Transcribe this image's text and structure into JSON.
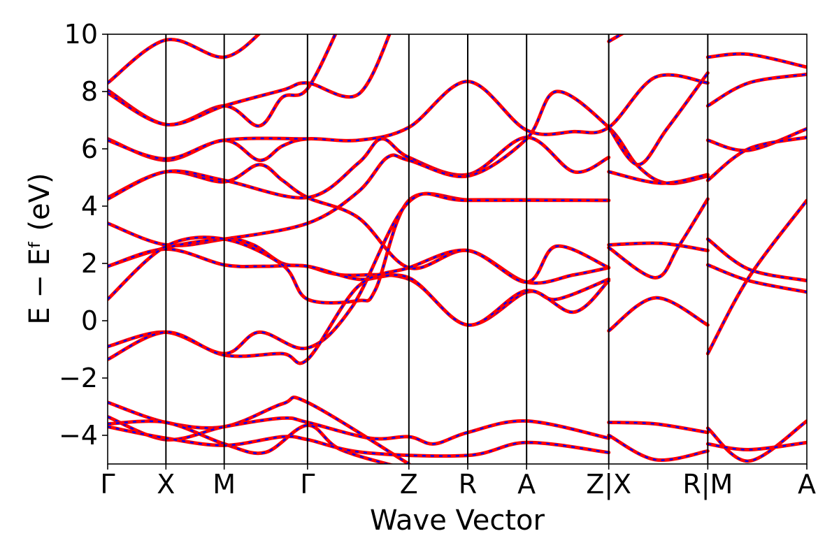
{
  "chart_data": {
    "type": "line",
    "title": "",
    "xlabel": "Wave Vector",
    "ylabel": "E − Eᶠ (eV)",
    "ylim": [
      -5,
      10
    ],
    "yticks": [
      -4,
      -2,
      0,
      2,
      4,
      6,
      8,
      10
    ],
    "ytick_labels": [
      "−4",
      "−2",
      "0",
      "2",
      "4",
      "6",
      "8",
      "10"
    ],
    "xlim": [
      0,
      12
    ],
    "kpoint_ticks": [
      {
        "x": 0,
        "label": "Γ"
      },
      {
        "x": 1,
        "label": "X"
      },
      {
        "x": 2,
        "label": "M"
      },
      {
        "x": 3.43,
        "label": "Γ"
      },
      {
        "x": 5.17,
        "label": "Z"
      },
      {
        "x": 6.18,
        "label": "R"
      },
      {
        "x": 7.19,
        "label": "A"
      },
      {
        "x": 8.6,
        "label": "Z|X"
      },
      {
        "x": 10.3,
        "label": "R|M"
      },
      {
        "x": 12,
        "label": "A"
      }
    ],
    "segment_breaks": [
      8.6,
      10.3
    ],
    "series_style": [
      {
        "color": "#ff0000",
        "style": "solid"
      },
      {
        "color": "#0000ff",
        "style": "dashed"
      }
    ],
    "bands": [
      [
        [
          0,
          8.3
        ],
        [
          1,
          9.8
        ],
        [
          2,
          9.2
        ],
        [
          2.7,
          10.2
        ]
      ],
      [
        [
          0,
          8.05
        ],
        [
          1,
          6.85
        ],
        [
          2,
          7.5
        ],
        [
          2.6,
          6.8
        ],
        [
          3,
          7.8
        ],
        [
          3.43,
          8.1
        ],
        [
          4,
          10.4
        ]
      ],
      [
        [
          0,
          7.95
        ],
        [
          1,
          6.85
        ],
        [
          2,
          7.5
        ],
        [
          3,
          8.05
        ],
        [
          3.43,
          8.3
        ],
        [
          4.3,
          7.9
        ],
        [
          4.9,
          10.3
        ]
      ],
      [
        [
          0,
          6.35
        ],
        [
          1,
          5.6
        ],
        [
          2,
          6.3
        ],
        [
          2.6,
          5.6
        ],
        [
          3,
          6.1
        ],
        [
          3.43,
          6.35
        ],
        [
          4.3,
          6.3
        ],
        [
          5.17,
          6.75
        ],
        [
          6.18,
          8.35
        ],
        [
          7.19,
          6.65
        ],
        [
          8,
          6.6
        ],
        [
          8.6,
          6.75
        ],
        [
          9.4,
          8.5
        ],
        [
          10.3,
          8.3
        ]
      ],
      [
        [
          0,
          6.3
        ],
        [
          1,
          5.65
        ],
        [
          2,
          6.3
        ],
        [
          3.43,
          6.35
        ]
      ],
      [
        [
          0,
          4.3
        ],
        [
          1,
          5.2
        ],
        [
          2,
          4.85
        ],
        [
          2.6,
          5.45
        ],
        [
          3,
          4.9
        ],
        [
          3.43,
          4.3
        ],
        [
          4.3,
          3.6
        ],
        [
          5.17,
          1.85
        ],
        [
          6.18,
          2.45
        ],
        [
          7.19,
          1.35
        ],
        [
          8,
          1.6
        ],
        [
          8.6,
          1.85
        ]
      ],
      [
        [
          0,
          4.25
        ],
        [
          1,
          5.2
        ],
        [
          2,
          4.9
        ],
        [
          3.43,
          4.3
        ],
        [
          4.3,
          5.5
        ],
        [
          4.7,
          6.35
        ],
        [
          5.17,
          5.7
        ],
        [
          6.18,
          5.1
        ],
        [
          7.19,
          6.4
        ],
        [
          8,
          5.2
        ],
        [
          8.6,
          5.7
        ]
      ],
      [
        [
          0,
          3.4
        ],
        [
          1,
          2.65
        ],
        [
          2,
          2.85
        ],
        [
          3.43,
          3.4
        ],
        [
          4.3,
          4.5
        ],
        [
          4.8,
          5.7
        ],
        [
          5.17,
          5.6
        ],
        [
          6.18,
          5.05
        ],
        [
          7.19,
          6.35
        ],
        [
          7.7,
          8.0
        ],
        [
          8.6,
          6.75
        ],
        [
          9.1,
          5.4
        ],
        [
          9.6,
          4.8
        ],
        [
          10.3,
          5.05
        ]
      ],
      [
        [
          0,
          1.9
        ],
        [
          1,
          2.55
        ],
        [
          2,
          2.85
        ],
        [
          2.5,
          2.65
        ],
        [
          3,
          2.0
        ],
        [
          3.43,
          1.9
        ],
        [
          4,
          1.6
        ],
        [
          5.17,
          1.45
        ],
        [
          6.18,
          -0.15
        ],
        [
          7.19,
          1.0
        ],
        [
          7.7,
          0.75
        ],
        [
          8.6,
          1.45
        ]
      ],
      [
        [
          0,
          1.9
        ],
        [
          1,
          2.5
        ],
        [
          2,
          1.95
        ],
        [
          2.7,
          1.9
        ],
        [
          3.43,
          1.9
        ],
        [
          4.3,
          1.45
        ],
        [
          5.17,
          1.5
        ],
        [
          6.18,
          -0.15
        ],
        [
          7.19,
          1.05
        ],
        [
          8,
          0.3
        ],
        [
          8.6,
          1.4
        ]
      ],
      [
        [
          0,
          0.75
        ],
        [
          1,
          2.6
        ],
        [
          2,
          2.85
        ],
        [
          3,
          1.95
        ],
        [
          3.43,
          0.75
        ],
        [
          4.3,
          0.7
        ],
        [
          4.6,
          1.1
        ],
        [
          5.17,
          4.2
        ],
        [
          6.18,
          4.22
        ],
        [
          7.19,
          4.22
        ],
        [
          8.6,
          4.2
        ]
      ],
      [
        [
          0,
          -0.9
        ],
        [
          1,
          -0.4
        ],
        [
          2,
          -1.15
        ],
        [
          2.6,
          -0.4
        ],
        [
          3.43,
          -0.95
        ],
        [
          4.2,
          0.5
        ],
        [
          5.17,
          4.15
        ],
        [
          6.18,
          4.2
        ],
        [
          8.6,
          4.2
        ]
      ],
      [
        [
          0,
          -1.35
        ],
        [
          1,
          -0.4
        ],
        [
          2,
          -1.2
        ],
        [
          3,
          -1.15
        ],
        [
          3.43,
          -1.35
        ],
        [
          4.3,
          1.2
        ],
        [
          5.17,
          1.85
        ],
        [
          6.18,
          2.45
        ],
        [
          7.19,
          1.35
        ],
        [
          7.7,
          2.6
        ],
        [
          8.6,
          1.85
        ]
      ],
      [
        [
          0,
          -2.85
        ],
        [
          1,
          -3.55
        ],
        [
          2,
          -3.7
        ],
        [
          3,
          -2.9
        ],
        [
          3.43,
          -2.85
        ],
        [
          5.17,
          -5.0
        ]
      ],
      [
        [
          0,
          -3.35
        ],
        [
          1,
          -4.15
        ],
        [
          2,
          -3.7
        ],
        [
          3,
          -3.4
        ],
        [
          3.43,
          -3.55
        ],
        [
          4.5,
          -4.1
        ],
        [
          5.17,
          -4.05
        ],
        [
          5.6,
          -4.3
        ],
        [
          6.18,
          -3.9
        ],
        [
          7.19,
          -3.5
        ],
        [
          8.6,
          -4.1
        ]
      ],
      [
        [
          0,
          -3.6
        ],
        [
          1,
          -3.55
        ],
        [
          2,
          -4.3
        ],
        [
          2.7,
          -4.6
        ],
        [
          3.43,
          -3.65
        ],
        [
          4,
          -4.5
        ],
        [
          5.17,
          -5.2
        ]
      ],
      [
        [
          0,
          -3.7
        ],
        [
          1,
          -4.1
        ],
        [
          2,
          -4.35
        ],
        [
          3,
          -4.05
        ],
        [
          3.43,
          -4.15
        ],
        [
          4.4,
          -4.6
        ],
        [
          6.18,
          -4.7
        ],
        [
          7.19,
          -4.25
        ],
        [
          8.6,
          -4.6
        ]
      ],
      [
        [
          8.6,
          9.75
        ],
        [
          8.9,
          10.1
        ]
      ],
      [
        [
          8.6,
          6.75
        ],
        [
          9.1,
          5.45
        ],
        [
          9.6,
          6.7
        ],
        [
          10.3,
          8.65
        ]
      ],
      [
        [
          8.6,
          5.2
        ],
        [
          9.5,
          4.8
        ],
        [
          10.3,
          5.1
        ]
      ],
      [
        [
          8.6,
          2.55
        ],
        [
          9.4,
          1.5
        ],
        [
          9.8,
          2.6
        ],
        [
          10.3,
          4.25
        ]
      ],
      [
        [
          8.6,
          2.65
        ],
        [
          9.5,
          2.7
        ],
        [
          10.3,
          2.45
        ]
      ],
      [
        [
          8.6,
          -0.35
        ],
        [
          9.4,
          0.8
        ],
        [
          10.3,
          -0.15
        ]
      ],
      [
        [
          8.6,
          -3.55
        ],
        [
          9.4,
          -3.6
        ],
        [
          10.3,
          -3.9
        ]
      ],
      [
        [
          8.6,
          -4.0
        ],
        [
          9.4,
          -4.85
        ],
        [
          10.3,
          -4.55
        ]
      ],
      [
        [
          10.3,
          9.2
        ],
        [
          11,
          9.3
        ],
        [
          12,
          8.85
        ]
      ],
      [
        [
          10.3,
          7.5
        ],
        [
          11,
          8.3
        ],
        [
          12,
          8.6
        ]
      ],
      [
        [
          10.3,
          6.3
        ],
        [
          11,
          5.95
        ],
        [
          12,
          6.7
        ]
      ],
      [
        [
          10.3,
          4.9
        ],
        [
          11,
          6.0
        ],
        [
          12,
          6.4
        ]
      ],
      [
        [
          10.3,
          2.85
        ],
        [
          11,
          1.8
        ],
        [
          12,
          1.4
        ]
      ],
      [
        [
          10.3,
          1.95
        ],
        [
          11,
          1.4
        ],
        [
          12,
          1.0
        ]
      ],
      [
        [
          10.3,
          -1.15
        ],
        [
          11,
          1.5
        ],
        [
          12,
          4.2
        ]
      ],
      [
        [
          10.3,
          -3.75
        ],
        [
          11,
          -4.9
        ],
        [
          12,
          -3.5
        ]
      ],
      [
        [
          10.3,
          -4.3
        ],
        [
          11,
          -4.5
        ],
        [
          12,
          -4.25
        ]
      ]
    ]
  }
}
